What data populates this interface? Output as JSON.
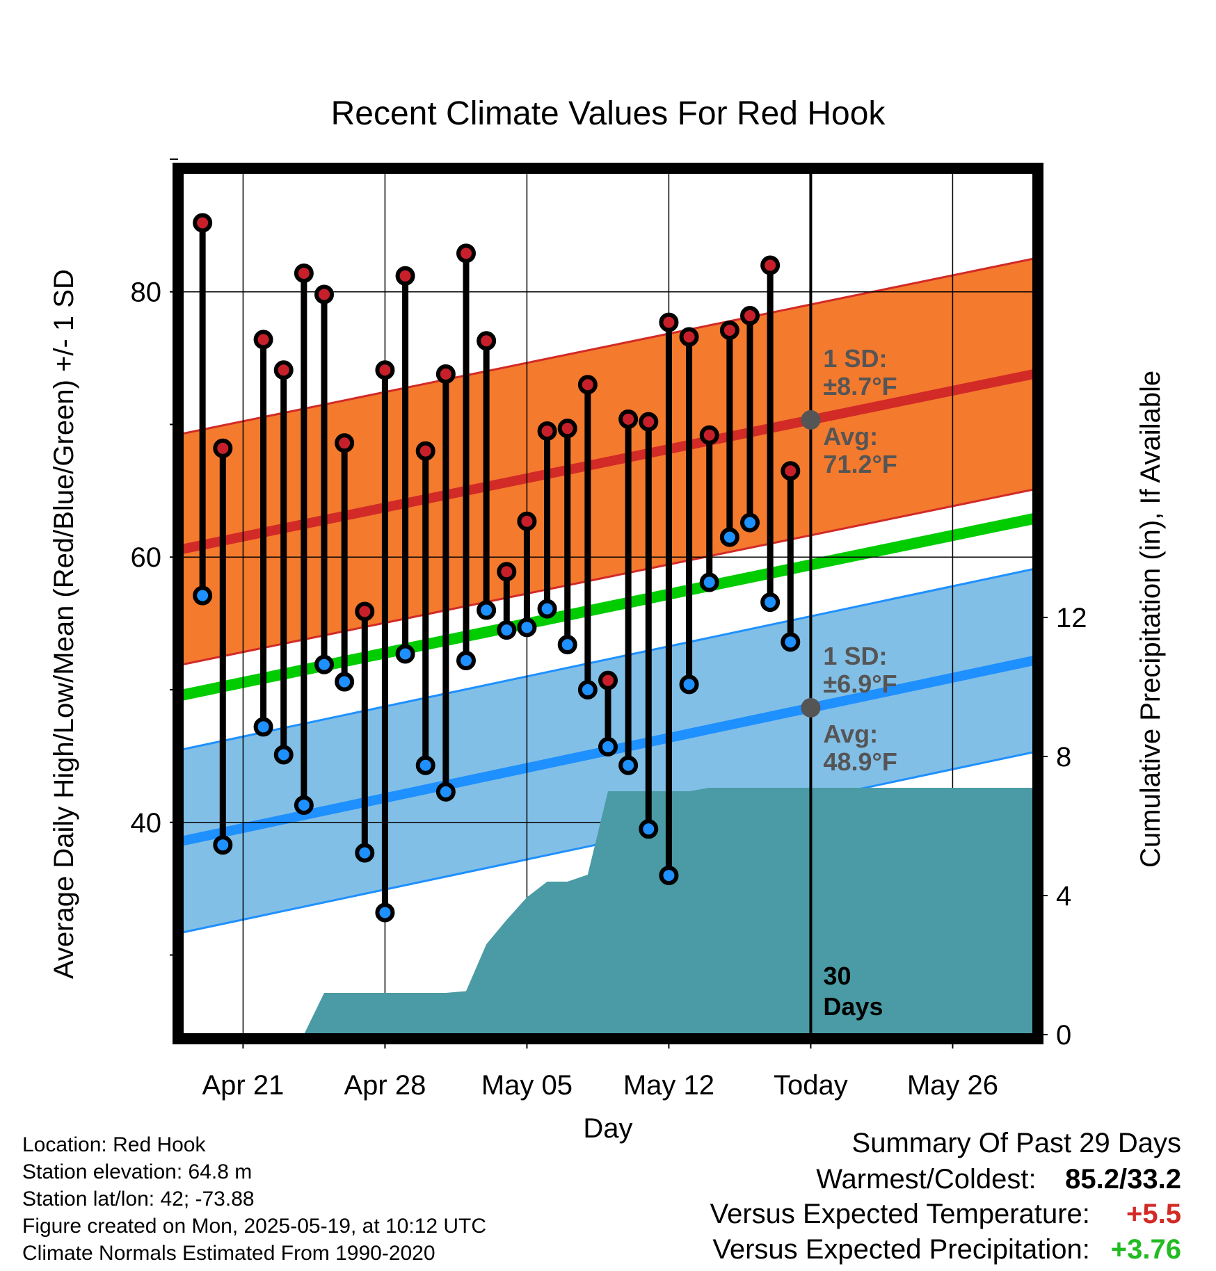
{
  "title": "Recent Climate Values For Red Hook",
  "chart_data": {
    "type": "line",
    "title": "Recent Climate Values For Red Hook",
    "xlabel": "Day",
    "ylabel": "Average Daily High/Low/Mean (Red/Blue/Green) +/- 1 SD",
    "y2label": "Cumulative Precipitation (in), If Available",
    "ylim": [
      24,
      89
    ],
    "y2lim": [
      0,
      24.8
    ],
    "yticks": [
      40,
      60,
      80
    ],
    "yminor_ticks": [
      30,
      50,
      70,
      90
    ],
    "y2ticks": [
      0,
      4,
      8,
      12
    ],
    "x_range": [
      "2025-04-18",
      "2025-05-30"
    ],
    "xticks": [
      {
        "date": "2025-04-21",
        "label": "Apr 21"
      },
      {
        "date": "2025-04-28",
        "label": "Apr 28"
      },
      {
        "date": "2025-05-05",
        "label": "May 05"
      },
      {
        "date": "2025-05-12",
        "label": "May 12"
      },
      {
        "date": "2025-05-19",
        "label": "Today"
      },
      {
        "date": "2025-05-26",
        "label": "May 26"
      }
    ],
    "today": "2025-05-19",
    "grid": true,
    "normals": {
      "high_avg_start": 60.6,
      "high_avg_end": 73.8,
      "high_sd": 8.7,
      "low_avg_start": 38.6,
      "low_avg_end": 52.2,
      "low_sd": 6.9,
      "mean_start": 49.6,
      "mean_end": 62.9
    },
    "series": [
      {
        "name": "High",
        "dates": [
          "2025-04-19",
          "2025-04-20",
          "2025-04-22",
          "2025-04-23",
          "2025-04-24",
          "2025-04-25",
          "2025-04-26",
          "2025-04-27",
          "2025-04-28",
          "2025-04-29",
          "2025-04-30",
          "2025-05-01",
          "2025-05-02",
          "2025-05-03",
          "2025-05-04",
          "2025-05-05",
          "2025-05-06",
          "2025-05-07",
          "2025-05-08",
          "2025-05-09",
          "2025-05-10",
          "2025-05-11",
          "2025-05-12",
          "2025-05-13",
          "2025-05-14",
          "2025-05-15",
          "2025-05-16",
          "2025-05-17",
          "2025-05-18"
        ],
        "values": [
          85.2,
          68.2,
          76.4,
          74.1,
          81.4,
          79.8,
          68.6,
          55.9,
          74.1,
          81.2,
          68.0,
          73.8,
          82.9,
          76.3,
          58.9,
          62.7,
          69.5,
          69.7,
          73.0,
          50.7,
          70.4,
          70.2,
          77.7,
          76.6,
          69.2,
          77.1,
          78.2,
          82.0,
          66.5
        ]
      },
      {
        "name": "Low",
        "dates": [
          "2025-04-19",
          "2025-04-20",
          "2025-04-22",
          "2025-04-23",
          "2025-04-24",
          "2025-04-25",
          "2025-04-26",
          "2025-04-27",
          "2025-04-28",
          "2025-04-29",
          "2025-04-30",
          "2025-05-01",
          "2025-05-02",
          "2025-05-03",
          "2025-05-04",
          "2025-05-05",
          "2025-05-06",
          "2025-05-07",
          "2025-05-08",
          "2025-05-09",
          "2025-05-10",
          "2025-05-11",
          "2025-05-12",
          "2025-05-13",
          "2025-05-14",
          "2025-05-15",
          "2025-05-16",
          "2025-05-17",
          "2025-05-18"
        ],
        "values": [
          57.1,
          38.3,
          47.2,
          45.1,
          41.3,
          51.9,
          50.6,
          37.7,
          33.2,
          52.7,
          44.3,
          42.3,
          52.2,
          56.0,
          54.5,
          54.7,
          56.1,
          53.4,
          50.0,
          45.7,
          44.3,
          39.5,
          36.0,
          50.4,
          58.1,
          61.5,
          62.6,
          56.6,
          53.6
        ]
      }
    ],
    "precipitation": {
      "dates": [
        "2025-04-18",
        "2025-04-24",
        "2025-04-25",
        "2025-05-01",
        "2025-05-02",
        "2025-05-03",
        "2025-05-04",
        "2025-05-05",
        "2025-05-06",
        "2025-05-07",
        "2025-05-08",
        "2025-05-09",
        "2025-05-10",
        "2025-05-11",
        "2025-05-12",
        "2025-05-13",
        "2025-05-14",
        "2025-05-30"
      ],
      "values": [
        0,
        0,
        1.2,
        1.2,
        1.25,
        2.6,
        3.3,
        3.95,
        4.4,
        4.4,
        4.6,
        7.0,
        7.0,
        7.0,
        7.0,
        7.0,
        7.1,
        7.1
      ]
    },
    "annotations": {
      "high_sd": "1 SD:",
      "high_sd_val": "±8.7°F",
      "high_avg": "Avg:",
      "high_avg_val": "71.2°F",
      "low_sd": "1 SD:",
      "low_sd_val": "±6.9°F",
      "low_avg": "Avg:",
      "low_avg_val": "48.9°F",
      "days_num": "30",
      "days_word": "Days"
    },
    "colors": {
      "high_band": "#F47A2E",
      "high_line": "#D22A26",
      "low_band": "#82BFE6",
      "low_line": "#1E90FF",
      "mean_line": "#00CC00",
      "precip": "#4A9BA5",
      "high_marker": "#C8202A",
      "low_marker": "#1E90FF",
      "annotation": "#555555"
    }
  },
  "info": {
    "location": "Location: Red Hook",
    "elevation": "Station elevation: 64.8 m",
    "latlon": "Station lat/lon: 42; -73.88",
    "created": "Figure created on Mon, 2025-05-19, at 10:12 UTC",
    "normals": "Climate Normals Estimated From 1990-2020"
  },
  "summary": {
    "heading": "Summary Of Past 29 Days",
    "warm_cold_label": "Warmest/Coldest:",
    "warm_cold_value": "85.2/33.2",
    "temp_label": "Versus Expected Temperature:",
    "temp_value": "+5.5",
    "temp_color": "#D22A26",
    "precip_label": "Versus Expected Precipitation:",
    "precip_value": "+3.76",
    "precip_color": "#22BB22"
  }
}
